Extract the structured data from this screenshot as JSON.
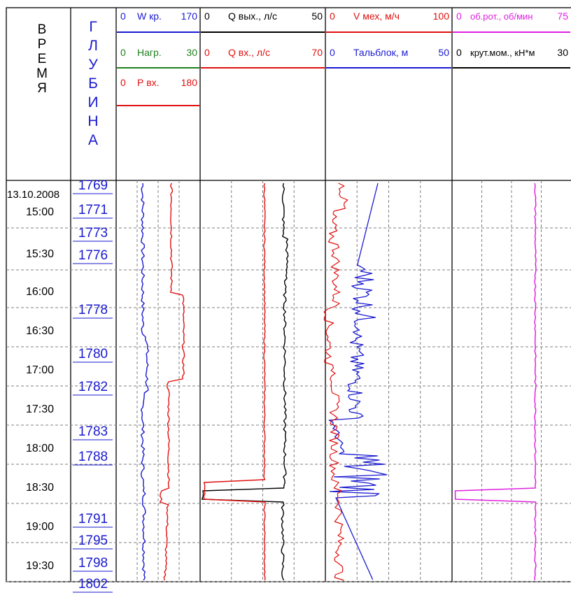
{
  "chart_data": {
    "type": "line",
    "header": {
      "time_letters": [
        "В",
        "Р",
        "Е",
        "М",
        "Я"
      ],
      "depth_letters": [
        "Г",
        "Л",
        "У",
        "Б",
        "И",
        "Н",
        "А"
      ]
    },
    "time_labels": [
      "13.10.2008",
      "15:00",
      "15:30",
      "16:00",
      "16:30",
      "17:00",
      "17:30",
      "18:00",
      "18:30",
      "19:00",
      "19:30"
    ],
    "depth_labels": [
      "1769",
      "1771",
      "1773",
      "1776",
      "1778",
      "1780",
      "1782",
      "1783",
      "1788",
      "1791",
      "1795",
      "1798",
      "1802"
    ],
    "tracks": [
      {
        "params": [
          {
            "name": "W кр.",
            "min": "0",
            "max": "170",
            "color": "#1a1ad0"
          },
          {
            "name": "Нагр.",
            "min": "0",
            "max": "30",
            "color": "#208020"
          },
          {
            "name": "Р вх.",
            "min": "0",
            "max": "180",
            "color": "#e01010"
          }
        ]
      },
      {
        "params": [
          {
            "name": "Q вых., л/с",
            "min": "0",
            "max": "50",
            "color": "#000000"
          },
          {
            "name": "Q вх., л/с",
            "min": "0",
            "max": "70",
            "color": "#e01010"
          }
        ]
      },
      {
        "params": [
          {
            "name": "V мех, м/ч",
            "min": "0",
            "max": "100",
            "color": "#e01010"
          },
          {
            "name": "Тальблок, м",
            "min": "0",
            "max": "50",
            "color": "#1a1ad0"
          }
        ]
      },
      {
        "params": [
          {
            "name": "об.рот., об/мин",
            "min": "0",
            "max": "75",
            "color": "#e020e0"
          },
          {
            "name": "крут.мом., кН*м",
            "min": "0",
            "max": "30",
            "color": "#000000"
          }
        ]
      }
    ],
    "series_hint": "Curves are approximate traces of the logged parameters over time",
    "colors": {
      "blue": "#1a1ad0",
      "green": "#208020",
      "red": "#e01010",
      "black": "#000000",
      "magenta": "#e020e0",
      "grid": "#808080"
    }
  }
}
